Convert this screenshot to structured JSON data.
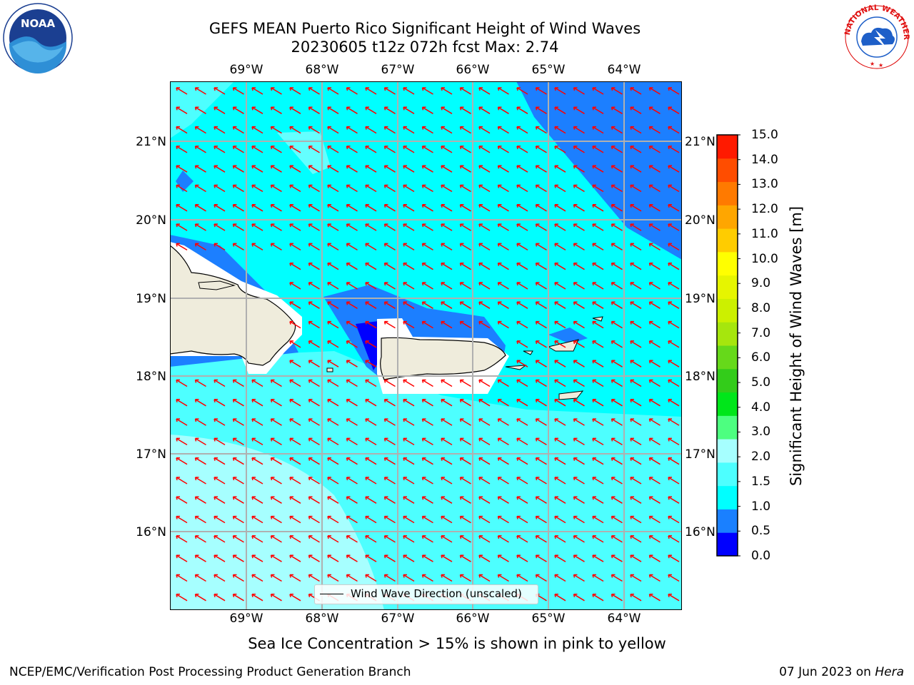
{
  "title": {
    "line1": "GEFS MEAN Puerto Rico Significant Height of Wind Waves",
    "line2": "20230605 t12z 072h fcst   Max: 2.74"
  },
  "map": {
    "lon_labels": [
      "69°W",
      "68°W",
      "67°W",
      "66°W",
      "65°W",
      "64°W"
    ],
    "lat_labels": [
      "21°N",
      "20°N",
      "19°N",
      "18°N",
      "17°N",
      "16°N"
    ],
    "legend_label": "Wind Wave Direction (unscaled)",
    "colors": {
      "ocean_low": "#00ffff",
      "ocean_mid": "#4dffff",
      "ocean_high": "#a6ffff",
      "ocean_deep": "#1c7fff",
      "ocean_darkest": "#0000ff",
      "land": "#efecdc",
      "arrow": "#ff0000",
      "grid": "#b0b0b0"
    }
  },
  "colorbar": {
    "label": "Significant Height of Wind Waves [m]",
    "ticks": [
      "15.0",
      "14.0",
      "13.0",
      "12.0",
      "11.0",
      "10.0",
      "9.0",
      "8.0",
      "7.0",
      "6.0",
      "5.0",
      "4.0",
      "3.0",
      "2.0",
      "1.5",
      "1.0",
      "0.5",
      "0.0"
    ],
    "colors": [
      "#0000ff",
      "#1a80ff",
      "#00ffff",
      "#4dffff",
      "#a6ffff",
      "#4dff80",
      "#00e61a",
      "#33cc1a",
      "#66d91a",
      "#a6e60d",
      "#ccf000",
      "#e6f500",
      "#ffff00",
      "#ffcc00",
      "#ffa600",
      "#ff7a00",
      "#ff4d00",
      "#ff1a00"
    ]
  },
  "footer": {
    "note": "Sea Ice Concentration > 15% is shown in pink to yellow",
    "left": "NCEP/EMC/Verification Post Processing Product Generation Branch",
    "date": "07 Jun 2023 on",
    "machine": "Hera"
  },
  "logos": {
    "noaa_text": "NOAA",
    "nws_text": "NATIONAL WEATHER SERVICE"
  }
}
